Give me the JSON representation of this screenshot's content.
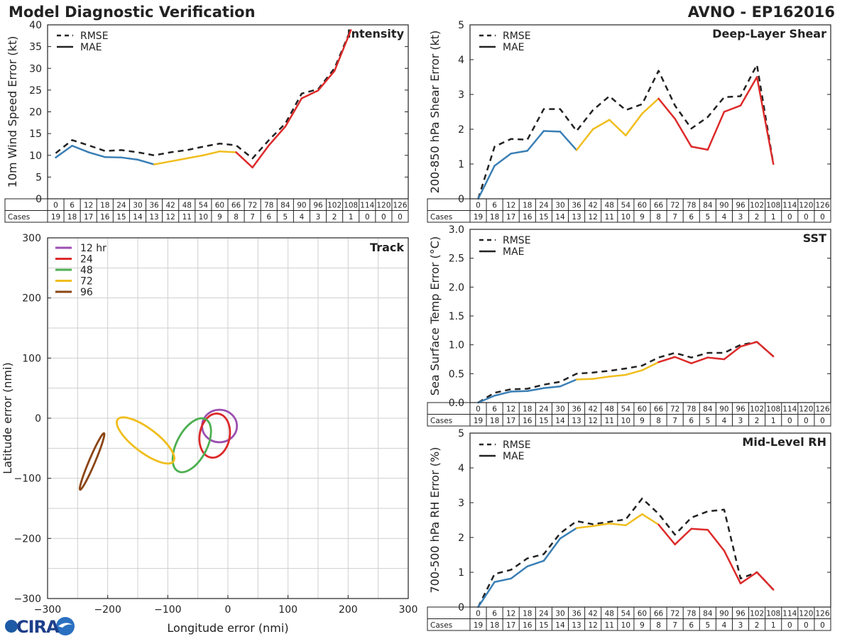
{
  "header": {
    "title": "Model Diagnostic Verification",
    "storm": "AVNO - EP162016"
  },
  "logo": {
    "text": "CIRA"
  },
  "colors": {
    "phase1": "#3a7fb5",
    "phase2": "#f0be1e",
    "phase3": "#dd2a2a",
    "rmse": "#222222",
    "ell12": "#9b4fb0",
    "ell24": "#dd2a2a",
    "ell48": "#4caf50",
    "ell72": "#f0be1e",
    "ell96": "#8b4513"
  },
  "chart_data": [
    {
      "id": "intensity",
      "type": "line",
      "title": "Intensity",
      "ylabel": "10m Wind Speed Error (kt)",
      "ylim": [
        0,
        40
      ],
      "yticks": [
        0,
        5,
        10,
        15,
        20,
        25,
        30,
        35,
        40
      ],
      "hours": [
        0,
        6,
        12,
        18,
        24,
        30,
        36,
        42,
        48,
        54,
        60,
        66,
        72,
        78,
        84,
        90,
        96,
        102,
        108,
        114,
        120,
        126
      ],
      "cases": [
        19,
        18,
        17,
        16,
        15,
        14,
        13,
        12,
        11,
        10,
        9,
        8,
        7,
        6,
        5,
        4,
        3,
        2,
        1,
        0,
        0,
        0
      ],
      "cases_label": "Cases",
      "legend": [
        "RMSE",
        "MAE"
      ],
      "series": [
        {
          "name": "RMSE",
          "values": [
            10.5,
            13.5,
            12.3,
            11,
            11.2,
            10.7,
            10,
            10.7,
            11.2,
            12,
            12.7,
            12.3,
            9.3,
            13.5,
            17.3,
            24.2,
            25.2,
            30,
            39
          ]
        },
        {
          "name": "MAE",
          "values": [
            9.5,
            12.2,
            10.7,
            9.6,
            9.5,
            9,
            7.9,
            8.6,
            9.3,
            10,
            10.9,
            10.7,
            7.2,
            12.3,
            16.6,
            23.1,
            24.9,
            29.4,
            38.8
          ]
        }
      ]
    },
    {
      "id": "shear",
      "type": "line",
      "title": "Deep-Layer Shear",
      "ylabel": "200-850 hPa Shear Error (kt)",
      "ylim": [
        0,
        5
      ],
      "yticks": [
        0,
        1,
        2,
        3,
        4,
        5
      ],
      "hours": [
        0,
        6,
        12,
        18,
        24,
        30,
        36,
        42,
        48,
        54,
        60,
        66,
        72,
        78,
        84,
        90,
        96,
        102,
        108,
        114,
        120,
        126
      ],
      "cases": [
        19,
        18,
        17,
        16,
        15,
        14,
        13,
        12,
        11,
        10,
        9,
        8,
        7,
        6,
        5,
        4,
        3,
        2,
        1,
        0,
        0,
        0
      ],
      "cases_label": "Cases",
      "legend": [
        "RMSE",
        "MAE"
      ],
      "series": [
        {
          "name": "RMSE",
          "values": [
            0,
            1.5,
            1.72,
            1.7,
            2.58,
            2.58,
            1.95,
            2.55,
            2.95,
            2.55,
            2.72,
            3.68,
            2.68,
            2.02,
            2.35,
            2.92,
            2.95,
            3.85,
            1.0
          ]
        },
        {
          "name": "MAE",
          "values": [
            0,
            0.95,
            1.3,
            1.38,
            1.95,
            1.93,
            1.4,
            2.0,
            2.27,
            1.82,
            2.45,
            2.88,
            2.3,
            1.5,
            1.41,
            2.5,
            2.68,
            3.5,
            1.0
          ]
        }
      ]
    },
    {
      "id": "sst",
      "type": "line",
      "title": "SST",
      "ylabel": "Sea Surface Temp Error (°C)",
      "ylim": [
        0,
        3
      ],
      "yticks": [
        "0.0",
        "0.5",
        "1.0",
        "1.5",
        "2.0",
        "2.5",
        "3.0"
      ],
      "hours": [
        0,
        6,
        12,
        18,
        24,
        30,
        36,
        42,
        48,
        54,
        60,
        66,
        72,
        78,
        84,
        90,
        96,
        102,
        108,
        114,
        120,
        126
      ],
      "cases": [
        19,
        18,
        17,
        16,
        15,
        14,
        13,
        12,
        11,
        10,
        9,
        8,
        7,
        6,
        5,
        4,
        3,
        2,
        1,
        0,
        0,
        0
      ],
      "cases_label": "Cases",
      "legend": [
        "RMSE",
        "MAE"
      ],
      "series": [
        {
          "name": "RMSE",
          "values": [
            0,
            0.17,
            0.23,
            0.24,
            0.31,
            0.36,
            0.5,
            0.52,
            0.55,
            0.59,
            0.64,
            0.78,
            0.86,
            0.78,
            0.86,
            0.86,
            1.0,
            1.05,
            0.8
          ]
        },
        {
          "name": "MAE",
          "values": [
            0,
            0.12,
            0.19,
            0.2,
            0.25,
            0.28,
            0.4,
            0.41,
            0.45,
            0.48,
            0.56,
            0.7,
            0.79,
            0.68,
            0.78,
            0.75,
            0.97,
            1.05,
            0.8
          ]
        }
      ]
    },
    {
      "id": "rh",
      "type": "line",
      "title": "Mid-Level RH",
      "ylabel": "700-500 hPa RH Error (%)",
      "ylim": [
        0,
        5
      ],
      "yticks": [
        0,
        1,
        2,
        3,
        4,
        5
      ],
      "hours": [
        0,
        6,
        12,
        18,
        24,
        30,
        36,
        42,
        48,
        54,
        60,
        66,
        72,
        78,
        84,
        90,
        96,
        102,
        108,
        114,
        120,
        126
      ],
      "cases": [
        19,
        18,
        17,
        16,
        15,
        14,
        13,
        12,
        11,
        10,
        9,
        8,
        7,
        6,
        5,
        4,
        3,
        2,
        1,
        0,
        0,
        0
      ],
      "cases_label": "Cases",
      "legend": [
        "RMSE",
        "MAE"
      ],
      "series": [
        {
          "name": "RMSE",
          "values": [
            0,
            0.95,
            1.07,
            1.4,
            1.52,
            2.12,
            2.47,
            2.38,
            2.45,
            2.52,
            3.12,
            2.68,
            2.08,
            2.57,
            2.75,
            2.8,
            0.82,
            1.0,
            0.5
          ]
        },
        {
          "name": "MAE",
          "values": [
            0,
            0.72,
            0.82,
            1.17,
            1.33,
            1.97,
            2.27,
            2.33,
            2.4,
            2.35,
            2.67,
            2.37,
            1.8,
            2.25,
            2.22,
            1.62,
            0.68,
            1.0,
            0.5
          ]
        }
      ]
    },
    {
      "id": "track",
      "type": "scatter",
      "title": "Track",
      "xlabel": "Longitude error (nmi)",
      "ylabel": "Latitude error (nmi)",
      "xlim": [
        -300,
        300
      ],
      "ylim": [
        -300,
        300
      ],
      "xticks": [
        "−300",
        "−200",
        "−100",
        "0",
        "100",
        "200",
        "300"
      ],
      "yticks": [
        "−300",
        "−200",
        "−100",
        "0",
        "100",
        "200",
        "300"
      ],
      "legend": [
        "12 hr",
        "24",
        "48",
        "72",
        "96"
      ],
      "ellipses": [
        {
          "name": "12 hr",
          "cx": -14,
          "cy": -13,
          "rx": 29,
          "ry": 27,
          "angle": 0
        },
        {
          "name": "24",
          "cx": -22,
          "cy": -29,
          "rx": 37,
          "ry": 25,
          "angle": 80
        },
        {
          "name": "48",
          "cx": -60,
          "cy": -45,
          "rx": 49,
          "ry": 25,
          "angle": 62
        },
        {
          "name": "72",
          "cx": -137,
          "cy": -37,
          "rx": 58,
          "ry": 20,
          "angle": -37
        },
        {
          "name": "96",
          "cx": -226,
          "cy": -72,
          "rx": 51,
          "ry": 5,
          "angle": 67
        }
      ]
    }
  ]
}
